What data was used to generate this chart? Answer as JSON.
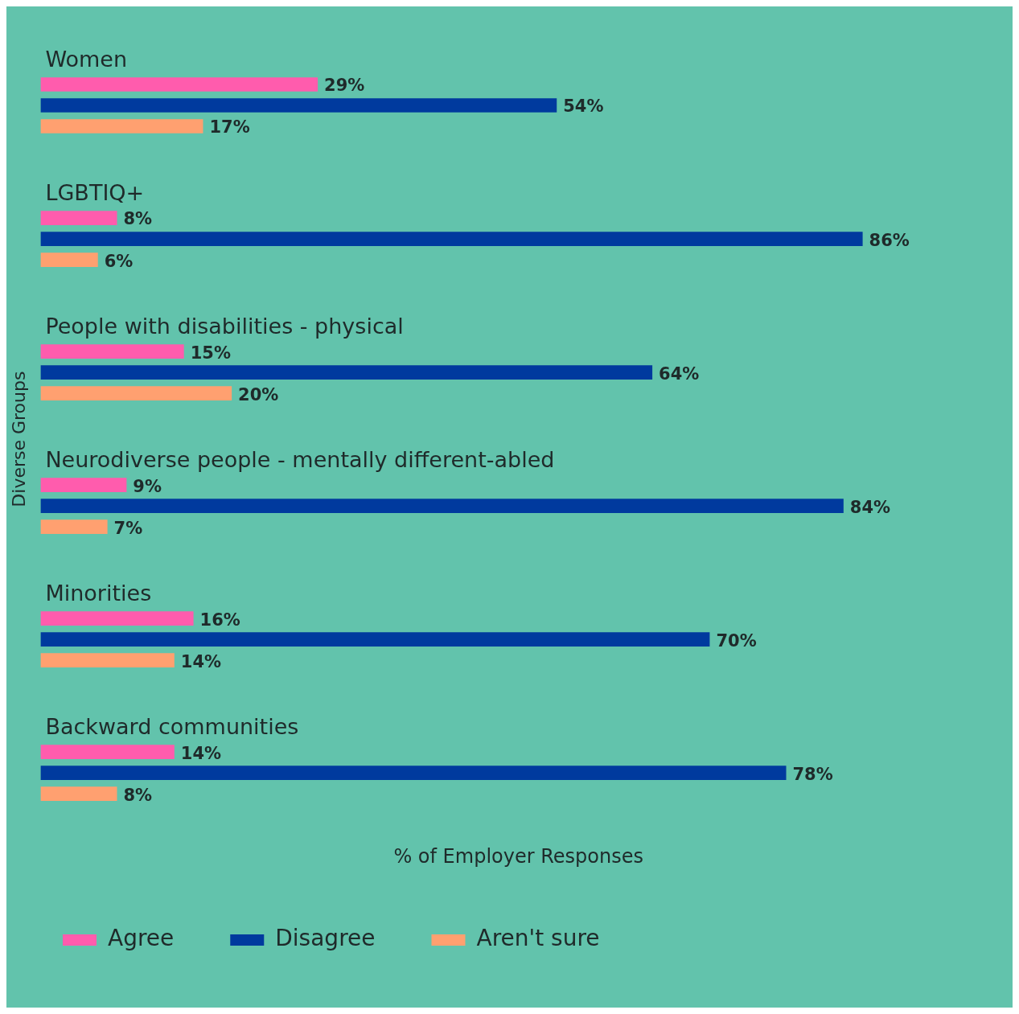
{
  "chart_data": {
    "type": "bar",
    "orientation": "horizontal",
    "xlabel": "% of Employer Responses",
    "ylabel": "Diverse Groups",
    "categories": [
      "Women",
      "LGBTIQ+",
      "People with disabilities - physical",
      "Neurodiverse people - mentally different-abled",
      "Minorities",
      "Backward communities"
    ],
    "series": [
      {
        "name": "Agree",
        "color": "#ff5cad",
        "values": [
          29,
          8,
          15,
          9,
          16,
          14
        ],
        "value_labels": [
          "29%",
          "8%",
          "15%",
          "9%",
          "16%",
          "14%"
        ]
      },
      {
        "name": "Disagree",
        "color": "#003a9e",
        "values": [
          54,
          86,
          64,
          84,
          70,
          78
        ],
        "value_labels": [
          "54%",
          "86%",
          "64%",
          "84%",
          "70%",
          "78%"
        ]
      },
      {
        "name": "Aren't sure",
        "color": "#ffa070",
        "values": [
          17,
          6,
          20,
          7,
          14,
          8
        ],
        "value_labels": [
          "17%",
          "6%",
          "20%",
          "7%",
          "14%",
          "8%"
        ]
      }
    ],
    "legend": "bottom left",
    "grid": false
  }
}
